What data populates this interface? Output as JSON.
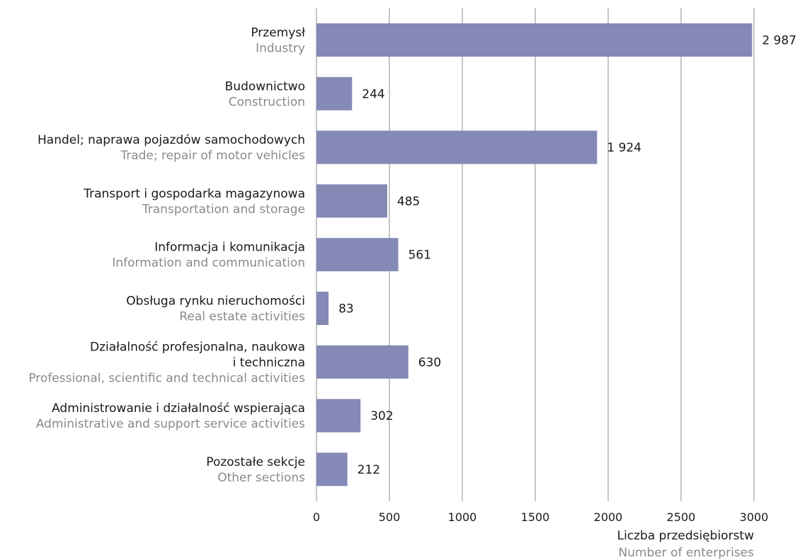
{
  "chart_data": {
    "type": "bar",
    "orientation": "horizontal",
    "categories": [
      {
        "pl": [
          "Przemysł"
        ],
        "en": [
          "Industry"
        ]
      },
      {
        "pl": [
          "Budownictwo"
        ],
        "en": [
          "Construction"
        ]
      },
      {
        "pl": [
          "Handel; naprawa pojazdów samochodowych"
        ],
        "en": [
          "Trade; repair of motor vehicles"
        ]
      },
      {
        "pl": [
          "Transport i gospodarka magazynowa"
        ],
        "en": [
          "Transportation and storage"
        ]
      },
      {
        "pl": [
          "Informacja i komunikacja"
        ],
        "en": [
          "Information and communication"
        ]
      },
      {
        "pl": [
          "Obsługa rynku nieruchomości"
        ],
        "en": [
          "Real estate activities"
        ]
      },
      {
        "pl": [
          "Działalność profesjonalna, naukowa",
          "i techniczna"
        ],
        "en": [
          "Professional, scientific and technical activities"
        ]
      },
      {
        "pl": [
          "Administrowanie i działalność wspierająca"
        ],
        "en": [
          "Administrative and support service activities"
        ]
      },
      {
        "pl": [
          "Pozostałe sekcje"
        ],
        "en": [
          "Other sections"
        ]
      }
    ],
    "values": [
      2987,
      244,
      1924,
      485,
      561,
      83,
      630,
      302,
      212
    ],
    "value_labels": [
      "2 987",
      "244",
      "1 924",
      "485",
      "561",
      "83",
      "630",
      "302",
      "212"
    ],
    "xlim": [
      0,
      3000
    ],
    "xticks": [
      0,
      500,
      1000,
      1500,
      2000,
      2500,
      3000
    ],
    "xticklabels": [
      "0",
      "500",
      "1000",
      "1500",
      "2000",
      "2500",
      "3000"
    ],
    "xlabel": {
      "pl": "Liczba przedsiębiorstw",
      "en": "Number of enterprises"
    },
    "ylabel": "",
    "title": "",
    "grid": "vertical",
    "bar_color": "#8489b5",
    "grid_color": "#8c8c8c"
  }
}
